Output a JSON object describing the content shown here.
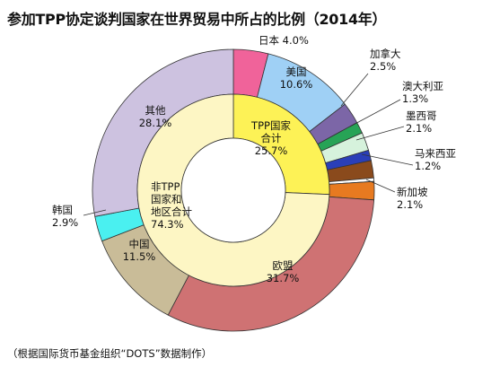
{
  "title": "参加TPP协定谈判国家在世界贸易中所占的比例（2014年）",
  "source": "（根据国际货币基金组织“DOTS”数据制作）",
  "chart_data": {
    "type": "pie",
    "outer_ring": [
      {
        "name": "日本",
        "value": 4.0,
        "label": "4.0%",
        "color": "#f0639a"
      },
      {
        "name": "美国",
        "value": 10.6,
        "label": "10.6%",
        "color": "#9fd0f5"
      },
      {
        "name": "加拿大",
        "value": 2.5,
        "label": "2.5%",
        "color": "#7c66a7"
      },
      {
        "name": "澳大利亚",
        "value": 1.3,
        "label": "1.3%",
        "color": "#27a356"
      },
      {
        "name": "墨西哥",
        "value": 2.1,
        "label": "2.1%",
        "color": "#d6f2dc"
      },
      {
        "name": "马来西亚",
        "value": 1.2,
        "label": "1.2%",
        "color": "#2a3fb8"
      },
      {
        "name": "",
        "value": 2.0,
        "label": "",
        "color": "#8a4a1c"
      },
      {
        "name": "",
        "value": 0.4,
        "label": "",
        "color": "#ffffff"
      },
      {
        "name": "新加坡",
        "value": 2.1,
        "label": "2.1%",
        "color": "#e77a20"
      },
      {
        "name": "欧盟",
        "value": 31.7,
        "label": "31.7%",
        "color": "#cf7273"
      },
      {
        "name": "中国",
        "value": 11.5,
        "label": "11.5%",
        "color": "#c9bc98"
      },
      {
        "name": "韩国",
        "value": 2.9,
        "label": "2.9%",
        "color": "#4af0f0"
      },
      {
        "name": "其他",
        "value": 28.1,
        "label": "28.1%",
        "color": "#cdc2e0"
      }
    ],
    "inner_ring": [
      {
        "name": "TPP国家合计",
        "value": 25.7,
        "label": "25.7%",
        "color": "#fdf256"
      },
      {
        "name": "非TPP国家和地区合计",
        "value": 74.3,
        "label": "74.3%",
        "color": "#fdf6c4"
      }
    ]
  }
}
